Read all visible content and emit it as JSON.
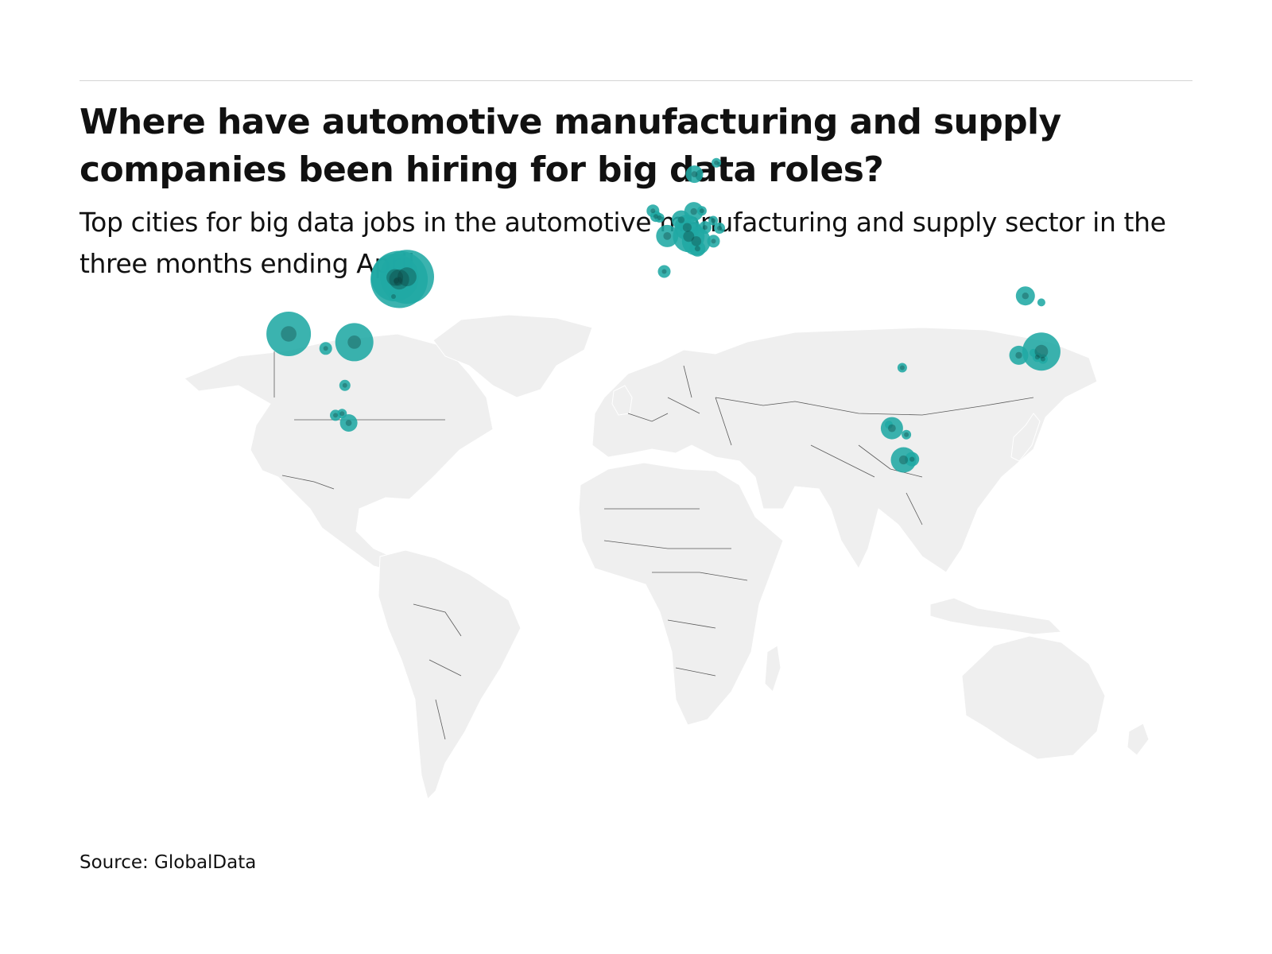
{
  "title": "Where have automotive manufacturing and supply companies been hiring for big data roles?",
  "subtitle": "Top cities for big data jobs in the automotive manufacturing and supply sector in the three months ending April",
  "source": "Source: GlobalData",
  "colors": {
    "bubble": "#20a8a4",
    "land": "#efefef",
    "border": "#5a5a5a",
    "rule": "#d4d4d4"
  },
  "chart_data": {
    "type": "bubble-map",
    "points": [
      {
        "lon": -83.0,
        "lat": 42.4,
        "size": 36
      },
      {
        "lon": -84.4,
        "lat": 42.7,
        "size": 30
      },
      {
        "lon": -80.5,
        "lat": 42.8,
        "size": 34
      },
      {
        "lon": -83.3,
        "lat": 42.1,
        "size": 16
      },
      {
        "lon": -83.9,
        "lat": 42.2,
        "size": 10
      },
      {
        "lon": -84.8,
        "lat": 39.8,
        "size": 6
      },
      {
        "lon": -118.2,
        "lat": 34.0,
        "size": 28
      },
      {
        "lon": -97.3,
        "lat": 32.7,
        "size": 24
      },
      {
        "lon": -106.4,
        "lat": 31.7,
        "size": 8
      },
      {
        "lon": -100.3,
        "lat": 25.7,
        "size": 7
      },
      {
        "lon": -103.3,
        "lat": 20.7,
        "size": 7
      },
      {
        "lon": -101.2,
        "lat": 21.0,
        "size": 6
      },
      {
        "lon": -99.1,
        "lat": 19.4,
        "size": 11
      },
      {
        "lon": -2.2,
        "lat": 52.5,
        "size": 8
      },
      {
        "lon": -1.3,
        "lat": 51.7,
        "size": 7
      },
      {
        "lon": -0.1,
        "lat": 51.5,
        "size": 6
      },
      {
        "lon": 2.35,
        "lat": 48.85,
        "size": 14
      },
      {
        "lon": 1.4,
        "lat": 43.6,
        "size": 8
      },
      {
        "lon": 11.0,
        "lat": 57.7,
        "size": 11
      },
      {
        "lon": 18.0,
        "lat": 59.3,
        "size": 6
      },
      {
        "lon": 6.8,
        "lat": 51.2,
        "size": 12
      },
      {
        "lon": 9.2,
        "lat": 48.8,
        "size": 20
      },
      {
        "lon": 11.6,
        "lat": 48.1,
        "size": 18
      },
      {
        "lon": 8.7,
        "lat": 50.1,
        "size": 16
      },
      {
        "lon": 10.8,
        "lat": 52.4,
        "size": 12
      },
      {
        "lon": 13.4,
        "lat": 52.5,
        "size": 6
      },
      {
        "lon": 14.4,
        "lat": 50.1,
        "size": 8
      },
      {
        "lon": 17.1,
        "lat": 48.1,
        "size": 8
      },
      {
        "lon": 19.0,
        "lat": 50.0,
        "size": 7
      },
      {
        "lon": 17.0,
        "lat": 51.1,
        "size": 6
      },
      {
        "lon": 12.0,
        "lat": 47.0,
        "size": 10
      },
      {
        "lon": 77.2,
        "lat": 28.6,
        "size": 6
      },
      {
        "lon": 73.9,
        "lat": 18.5,
        "size": 14
      },
      {
        "lon": 72.9,
        "lat": 19.1,
        "size": 5
      },
      {
        "lon": 78.5,
        "lat": 17.4,
        "size": 6
      },
      {
        "lon": 77.6,
        "lat": 12.97,
        "size": 16
      },
      {
        "lon": 80.3,
        "lat": 13.1,
        "size": 9
      },
      {
        "lon": 116.4,
        "lat": 39.9,
        "size": 12
      },
      {
        "lon": 121.5,
        "lat": 38.9,
        "size": 5
      },
      {
        "lon": 121.5,
        "lat": 31.2,
        "size": 24
      },
      {
        "lon": 120.2,
        "lat": 30.3,
        "size": 6
      },
      {
        "lon": 122.0,
        "lat": 30.0,
        "size": 6
      },
      {
        "lon": 119.0,
        "lat": 31.0,
        "size": 5
      },
      {
        "lon": 114.3,
        "lat": 30.6,
        "size": 12
      }
    ]
  }
}
